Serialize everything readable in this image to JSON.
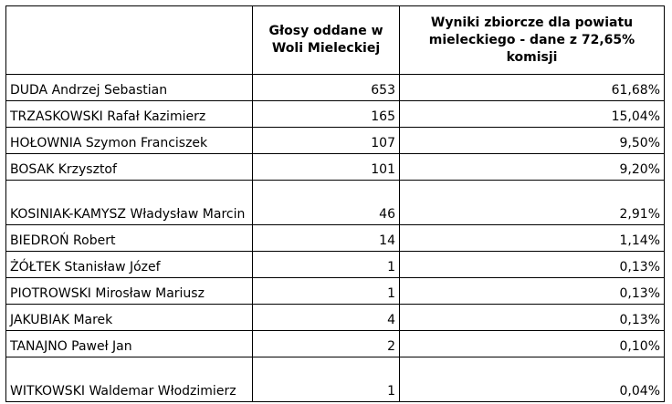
{
  "table": {
    "header": [
      "Głosy oddane w Woli Mieleckiej",
      "Wyniki zbiorcze dla powiatu mieleckiego - dane z 72,65% komisji"
    ],
    "rows": [
      [
        "DUDA Andrzej Sebastian",
        "653",
        "61,68%"
      ],
      [
        "TRZASKOWSKI Rafał Kazimierz",
        "165",
        "15,04%"
      ],
      [
        "HOŁOWNIA Szymon Franciszek",
        "107",
        "9,50%"
      ],
      [
        "BOSAK Krzysztof",
        "101",
        "9,20%"
      ],
      [
        "KOSINIAK-KAMYSZ Władysław Marcin",
        "46",
        "2,91%"
      ],
      [
        "BIEDROŃ Robert",
        "14",
        "1,14%"
      ],
      [
        "ŻÓŁTEK Stanisław Józef",
        "1",
        "0,13%"
      ],
      [
        "PIOTROWSKI Mirosław Mariusz",
        "1",
        "0,13%"
      ],
      [
        "JAKUBIAK Marek",
        "4",
        "0,13%"
      ],
      [
        "TANAJNO Paweł Jan",
        "2",
        "0,10%"
      ],
      [
        "WITKOWSKI Waldemar Włodzimierz",
        "1",
        "0,04%"
      ]
    ]
  }
}
